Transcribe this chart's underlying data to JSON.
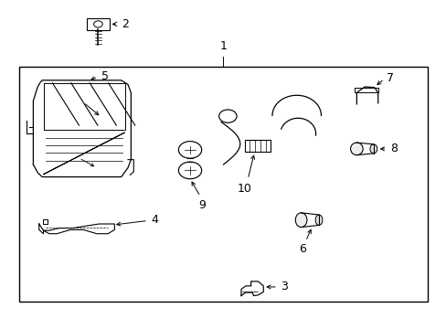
{
  "bg_color": "#ffffff",
  "line_color": "#000000",
  "border": [
    0.04,
    0.08,
    0.96,
    0.8
  ]
}
